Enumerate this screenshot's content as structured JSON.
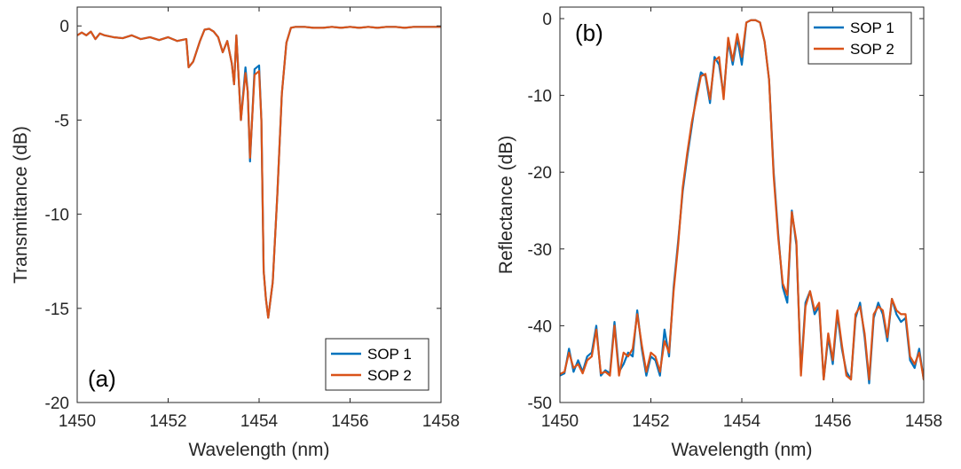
{
  "chart_data": [
    {
      "type": "line",
      "panel_label": "(a)",
      "xlabel": "Wavelength (nm)",
      "ylabel": "Transmittance (dB)",
      "xlim": [
        1450,
        1458
      ],
      "ylim": [
        -20,
        1
      ],
      "xticks": [
        1450,
        1452,
        1454,
        1456,
        1458
      ],
      "yticks": [
        -20,
        -15,
        -10,
        -5,
        0
      ],
      "xtick_labels": [
        "1450",
        "1452",
        "1454",
        "1456",
        "1458"
      ],
      "ytick_labels": [
        "-20",
        "-15",
        "-10",
        "-5",
        "0"
      ],
      "grid": false,
      "legend_position": "bottom-right",
      "series": [
        {
          "name": "SOP 1",
          "color": "#0072BD",
          "x": [
            1450,
            1450.1,
            1450.2,
            1450.3,
            1450.4,
            1450.5,
            1450.6,
            1450.8,
            1451,
            1451.2,
            1451.4,
            1451.6,
            1451.8,
            1452,
            1452.2,
            1452.4,
            1452.45,
            1452.55,
            1452.7,
            1452.8,
            1452.9,
            1453,
            1453.1,
            1453.2,
            1453.3,
            1453.4,
            1453.45,
            1453.5,
            1453.6,
            1453.7,
            1453.75,
            1453.8,
            1453.9,
            1454.0,
            1454.05,
            1454.1,
            1454.15,
            1454.2,
            1454.3,
            1454.4,
            1454.5,
            1454.6,
            1454.7,
            1454.8,
            1455,
            1455.2,
            1455.4,
            1455.6,
            1455.8,
            1456,
            1456.2,
            1456.4,
            1456.6,
            1456.8,
            1457,
            1457.2,
            1457.4,
            1457.6,
            1457.8,
            1458
          ],
          "values": [
            -0.5,
            -0.35,
            -0.5,
            -0.3,
            -0.7,
            -0.4,
            -0.5,
            -0.6,
            -0.65,
            -0.5,
            -0.7,
            -0.6,
            -0.75,
            -0.6,
            -0.8,
            -0.7,
            -2.2,
            -1.9,
            -0.8,
            -0.2,
            -0.15,
            -0.3,
            -0.6,
            -1.4,
            -0.8,
            -2.0,
            -3.1,
            -0.5,
            -5.0,
            -2.2,
            -3.5,
            -7.2,
            -2.3,
            -2.1,
            -5.0,
            -13.0,
            -14.5,
            -15.5,
            -13.6,
            -9.0,
            -3.6,
            -0.9,
            -0.1,
            -0.05,
            -0.05,
            -0.1,
            -0.1,
            -0.05,
            -0.1,
            -0.05,
            -0.1,
            -0.05,
            -0.1,
            -0.05,
            -0.05,
            -0.1,
            -0.05,
            -0.05,
            -0.05,
            -0.05
          ]
        },
        {
          "name": "SOP 2",
          "color": "#D95319",
          "x": [
            1450,
            1450.1,
            1450.2,
            1450.3,
            1450.4,
            1450.5,
            1450.6,
            1450.8,
            1451,
            1451.2,
            1451.4,
            1451.6,
            1451.8,
            1452,
            1452.2,
            1452.4,
            1452.45,
            1452.55,
            1452.7,
            1452.8,
            1452.9,
            1453,
            1453.1,
            1453.2,
            1453.3,
            1453.4,
            1453.45,
            1453.5,
            1453.6,
            1453.7,
            1453.75,
            1453.8,
            1453.9,
            1454.0,
            1454.05,
            1454.1,
            1454.15,
            1454.2,
            1454.3,
            1454.4,
            1454.5,
            1454.6,
            1454.7,
            1454.8,
            1455,
            1455.2,
            1455.4,
            1455.6,
            1455.8,
            1456,
            1456.2,
            1456.4,
            1456.6,
            1456.8,
            1457,
            1457.2,
            1457.4,
            1457.6,
            1457.8,
            1458
          ],
          "values": [
            -0.5,
            -0.35,
            -0.5,
            -0.3,
            -0.7,
            -0.4,
            -0.5,
            -0.6,
            -0.65,
            -0.5,
            -0.7,
            -0.6,
            -0.75,
            -0.6,
            -0.8,
            -0.7,
            -2.2,
            -1.9,
            -0.8,
            -0.2,
            -0.15,
            -0.3,
            -0.6,
            -1.4,
            -0.8,
            -2.0,
            -3.1,
            -0.5,
            -5.0,
            -2.5,
            -3.5,
            -7.0,
            -2.6,
            -2.4,
            -5.0,
            -13.0,
            -14.5,
            -15.5,
            -13.6,
            -9.0,
            -3.6,
            -0.9,
            -0.1,
            -0.05,
            -0.05,
            -0.1,
            -0.1,
            -0.05,
            -0.1,
            -0.05,
            -0.1,
            -0.05,
            -0.1,
            -0.05,
            -0.05,
            -0.1,
            -0.05,
            -0.05,
            -0.05,
            -0.05
          ]
        }
      ]
    },
    {
      "type": "line",
      "panel_label": "(b)",
      "xlabel": "Wavelength (nm)",
      "ylabel": "Reflectance (dB)",
      "xlim": [
        1450,
        1458
      ],
      "ylim": [
        -50,
        1.5
      ],
      "xticks": [
        1450,
        1452,
        1454,
        1456,
        1458
      ],
      "yticks": [
        -50,
        -40,
        -30,
        -20,
        -10,
        0
      ],
      "xtick_labels": [
        "1450",
        "1452",
        "1454",
        "1456",
        "1458"
      ],
      "ytick_labels": [
        "-50",
        "-40",
        "-30",
        "-20",
        "-10",
        "0"
      ],
      "grid": false,
      "legend_position": "top-right",
      "series": [
        {
          "name": "SOP 1",
          "color": "#0072BD",
          "x": [
            1450,
            1450.1,
            1450.2,
            1450.3,
            1450.4,
            1450.5,
            1450.6,
            1450.7,
            1450.8,
            1450.9,
            1451,
            1451.1,
            1451.2,
            1451.3,
            1451.4,
            1451.5,
            1451.6,
            1451.7,
            1451.8,
            1451.9,
            1452,
            1452.1,
            1452.2,
            1452.3,
            1452.4,
            1452.5,
            1452.6,
            1452.7,
            1452.8,
            1452.9,
            1453.0,
            1453.1,
            1453.2,
            1453.3,
            1453.4,
            1453.5,
            1453.6,
            1453.7,
            1453.8,
            1453.9,
            1454.0,
            1454.1,
            1454.2,
            1454.3,
            1454.4,
            1454.5,
            1454.6,
            1454.7,
            1454.8,
            1454.9,
            1455.0,
            1455.1,
            1455.2,
            1455.3,
            1455.4,
            1455.5,
            1455.6,
            1455.7,
            1455.8,
            1455.9,
            1456.0,
            1456.1,
            1456.2,
            1456.3,
            1456.4,
            1456.5,
            1456.6,
            1456.7,
            1456.8,
            1456.9,
            1457.0,
            1457.1,
            1457.2,
            1457.3,
            1457.4,
            1457.5,
            1457.6,
            1457.7,
            1457.8,
            1457.9,
            1458.0
          ],
          "values": [
            -46.5,
            -46.2,
            -43.0,
            -46.0,
            -44.5,
            -46.0,
            -44.0,
            -43.5,
            -40.0,
            -46.5,
            -45.8,
            -46.2,
            -39.5,
            -46.0,
            -45.0,
            -43.5,
            -44.0,
            -38.0,
            -43.0,
            -46.5,
            -44.0,
            -44.5,
            -46.5,
            -40.5,
            -44.0,
            -35.0,
            -29.0,
            -22.5,
            -18.0,
            -14.0,
            -10.0,
            -7.0,
            -7.5,
            -11.0,
            -5.0,
            -6.0,
            -10.0,
            -3.0,
            -6.0,
            -2.5,
            -6.0,
            -0.5,
            -0.2,
            -0.2,
            -0.5,
            -3.0,
            -8.0,
            -20.0,
            -28.0,
            -35.0,
            -37.0,
            -25.0,
            -29.5,
            -46.0,
            -37.0,
            -35.5,
            -38.5,
            -37.5,
            -47.0,
            -41.5,
            -45.0,
            -38.5,
            -43.0,
            -46.0,
            -47.0,
            -39.0,
            -37.0,
            -41.5,
            -47.5,
            -39.0,
            -37.0,
            -38.5,
            -42.0,
            -36.5,
            -38.5,
            -39.5,
            -39.0,
            -44.5,
            -45.5,
            -43.0,
            -47.0
          ]
        },
        {
          "name": "SOP 2",
          "color": "#D95319",
          "x": [
            1450,
            1450.1,
            1450.2,
            1450.3,
            1450.4,
            1450.5,
            1450.6,
            1450.7,
            1450.8,
            1450.9,
            1451,
            1451.1,
            1451.2,
            1451.3,
            1451.4,
            1451.5,
            1451.6,
            1451.7,
            1451.8,
            1451.9,
            1452,
            1452.1,
            1452.2,
            1452.3,
            1452.4,
            1452.5,
            1452.6,
            1452.7,
            1452.8,
            1452.9,
            1453.0,
            1453.1,
            1453.2,
            1453.3,
            1453.4,
            1453.5,
            1453.6,
            1453.7,
            1453.8,
            1453.9,
            1454.0,
            1454.1,
            1454.2,
            1454.3,
            1454.4,
            1454.5,
            1454.6,
            1454.7,
            1454.8,
            1454.9,
            1455.0,
            1455.1,
            1455.2,
            1455.3,
            1455.4,
            1455.5,
            1455.6,
            1455.7,
            1455.8,
            1455.9,
            1456.0,
            1456.1,
            1456.2,
            1456.3,
            1456.4,
            1456.5,
            1456.6,
            1456.7,
            1456.8,
            1456.9,
            1457.0,
            1457.1,
            1457.2,
            1457.3,
            1457.4,
            1457.5,
            1457.6,
            1457.7,
            1457.8,
            1457.9,
            1458.0
          ],
          "values": [
            -46.3,
            -46.0,
            -43.5,
            -45.5,
            -45.0,
            -46.2,
            -44.5,
            -44.0,
            -40.5,
            -46.2,
            -46.0,
            -46.5,
            -40.0,
            -46.5,
            -43.5,
            -44.0,
            -43.0,
            -38.5,
            -42.5,
            -46.0,
            -43.5,
            -44.0,
            -46.0,
            -42.0,
            -43.5,
            -35.5,
            -29.5,
            -22.0,
            -17.5,
            -13.5,
            -10.5,
            -7.5,
            -7.2,
            -10.5,
            -5.5,
            -5.0,
            -10.5,
            -2.5,
            -5.5,
            -2.0,
            -5.0,
            -0.5,
            -0.2,
            -0.2,
            -0.5,
            -3.0,
            -8.0,
            -20.5,
            -28.5,
            -34.5,
            -36.0,
            -25.2,
            -29.0,
            -46.5,
            -37.5,
            -35.5,
            -38.0,
            -37.0,
            -47.0,
            -41.0,
            -44.5,
            -38.0,
            -42.5,
            -46.5,
            -47.0,
            -38.5,
            -37.5,
            -41.0,
            -47.0,
            -38.5,
            -37.5,
            -38.0,
            -41.5,
            -36.5,
            -38.0,
            -38.5,
            -38.5,
            -44.0,
            -45.0,
            -43.5,
            -47.0
          ]
        }
      ]
    }
  ]
}
